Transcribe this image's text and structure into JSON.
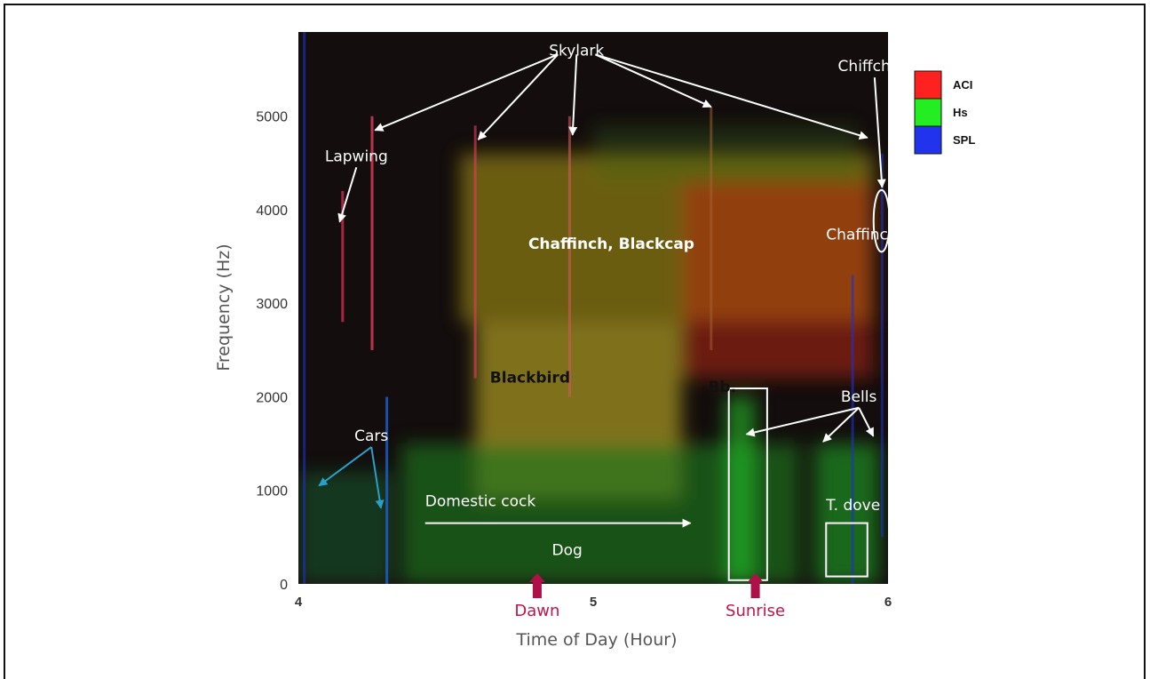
{
  "chart_data": {
    "type": "heatmap",
    "title": "",
    "xlabel": "Time of Day (Hour)",
    "ylabel": "Frequency (Hz)",
    "xlim": [
      4,
      6
    ],
    "ylim": [
      0,
      5900
    ],
    "x_ticks": [
      {
        "value": 4,
        "label": "4"
      },
      {
        "value": 5,
        "label": "5"
      },
      {
        "value": 6,
        "label": "6"
      }
    ],
    "y_ticks": [
      {
        "value": 0,
        "label": "0"
      },
      {
        "value": 1000,
        "label": "1000"
      },
      {
        "value": 2000,
        "label": "2000"
      },
      {
        "value": 3000,
        "label": "3000"
      },
      {
        "value": 4000,
        "label": "4000"
      },
      {
        "value": 5000,
        "label": "5000"
      }
    ],
    "legend": {
      "position": "right",
      "items": [
        {
          "label": "ACI",
          "color": "#ff2020"
        },
        {
          "label": "Hs",
          "color": "#22ee22"
        },
        {
          "label": "SPL",
          "color": "#2233ee"
        }
      ]
    },
    "background_color": "#130d0d",
    "regions": [
      {
        "x": [
          4.55,
          5.95
        ],
        "y": [
          2800,
          4600
        ],
        "color": "#b4a014",
        "opacity": 0.55
      },
      {
        "x": [
          4.6,
          5.3
        ],
        "y": [
          900,
          2800
        ],
        "color": "#c8b428",
        "opacity": 0.6
      },
      {
        "x": [
          5.3,
          5.95
        ],
        "y": [
          2200,
          4300
        ],
        "color": "#b4280f",
        "opacity": 0.55
      },
      {
        "x": [
          4.35,
          5.7
        ],
        "y": [
          0,
          1500
        ],
        "color": "#1e781e",
        "opacity": 0.65
      },
      {
        "x": [
          5.0,
          5.9
        ],
        "y": [
          4300,
          4900
        ],
        "color": "#3c6e14",
        "opacity": 0.3
      },
      {
        "x": [
          5.45,
          5.55
        ],
        "y": [
          0,
          2000
        ],
        "color": "#23c328",
        "opacity": 0.6
      },
      {
        "x": [
          5.75,
          5.97
        ],
        "y": [
          0,
          1500
        ],
        "color": "#23b428",
        "opacity": 0.55
      },
      {
        "x": [
          4.0,
          4.32
        ],
        "y": [
          0,
          1200
        ],
        "color": "#146432",
        "opacity": 0.5
      }
    ],
    "streaks": [
      {
        "x": 4.02,
        "y": [
          0,
          5900
        ],
        "color": "#1e32c8",
        "opacity": 0.6
      },
      {
        "x": 4.15,
        "y": [
          2800,
          4200
        ],
        "color": "#e6325a",
        "opacity": 0.7
      },
      {
        "x": 4.25,
        "y": [
          2500,
          5000
        ],
        "color": "#e63c5a",
        "opacity": 0.8
      },
      {
        "x": 4.3,
        "y": [
          0,
          2000
        ],
        "color": "#1e64dc",
        "opacity": 0.75
      },
      {
        "x": 4.6,
        "y": [
          2200,
          4900
        ],
        "color": "#e63c64",
        "opacity": 0.6
      },
      {
        "x": 4.92,
        "y": [
          2000,
          5000
        ],
        "color": "#d25a5a",
        "opacity": 0.6
      },
      {
        "x": 5.4,
        "y": [
          2500,
          5100
        ],
        "color": "#aa6432",
        "opacity": 0.5
      },
      {
        "x": 5.88,
        "y": [
          0,
          3300
        ],
        "color": "#1e32c8",
        "opacity": 0.6
      },
      {
        "x": 5.98,
        "y": [
          500,
          4600
        ],
        "color": "#1e32c8",
        "opacity": 0.55
      }
    ],
    "annotations": [
      {
        "label": "Skylark",
        "x": 4.85,
        "y": 5650,
        "style": "white",
        "arrows_to": [
          [
            4.26,
            4850
          ],
          [
            4.61,
            4750
          ],
          [
            4.93,
            4800
          ],
          [
            5.4,
            5100
          ],
          [
            5.93,
            4770
          ]
        ]
      },
      {
        "label": "Chiffchaff",
        "x": 5.83,
        "y": 5480,
        "style": "white",
        "arrows_to": [
          [
            5.98,
            4240
          ]
        ]
      },
      {
        "label": "Lapwing",
        "x": 4.09,
        "y": 4520,
        "style": "white",
        "arrows_to": [
          [
            4.14,
            3870
          ]
        ]
      },
      {
        "label": "Chaffinch, Blackcap",
        "x": 4.78,
        "y": 3580,
        "style": "white-bold"
      },
      {
        "label": "Chaffinch",
        "x": 5.79,
        "y": 3680,
        "style": "white"
      },
      {
        "label": "Blackbird",
        "x": 4.65,
        "y": 2150,
        "style": "black-bold"
      },
      {
        "label": "Bb.",
        "x": 5.39,
        "y": 2050,
        "style": "black-bold"
      },
      {
        "label": "Bells",
        "x": 5.84,
        "y": 1950,
        "style": "white",
        "arrows_to": [
          [
            5.52,
            1600
          ],
          [
            5.78,
            1520
          ],
          [
            5.95,
            1580
          ]
        ]
      },
      {
        "label": "Cars",
        "x": 4.19,
        "y": 1530,
        "style": "white",
        "arrows_to": [
          [
            4.07,
            1050
          ],
          [
            4.28,
            810
          ]
        ]
      },
      {
        "label": "Domestic cock",
        "x": 4.43,
        "y": 830,
        "style": "white",
        "arrows_to": [
          [
            5.33,
            650
          ]
        ]
      },
      {
        "label": "Dog",
        "x": 4.86,
        "y": 310,
        "style": "white"
      },
      {
        "label": "T. dove",
        "x": 5.79,
        "y": 790,
        "style": "white"
      }
    ],
    "boxes": [
      {
        "x": [
          5.46,
          5.59
        ],
        "y": [
          40,
          2090
        ]
      },
      {
        "x": [
          5.79,
          5.93
        ],
        "y": [
          80,
          650
        ]
      }
    ],
    "ellipses": [
      {
        "cx": 5.978,
        "cy": 3880,
        "rx": 0.027,
        "ry": 330
      }
    ],
    "events": [
      {
        "label": "Dawn",
        "x": 4.81
      },
      {
        "label": "Sunrise",
        "x": 5.55
      }
    ]
  }
}
